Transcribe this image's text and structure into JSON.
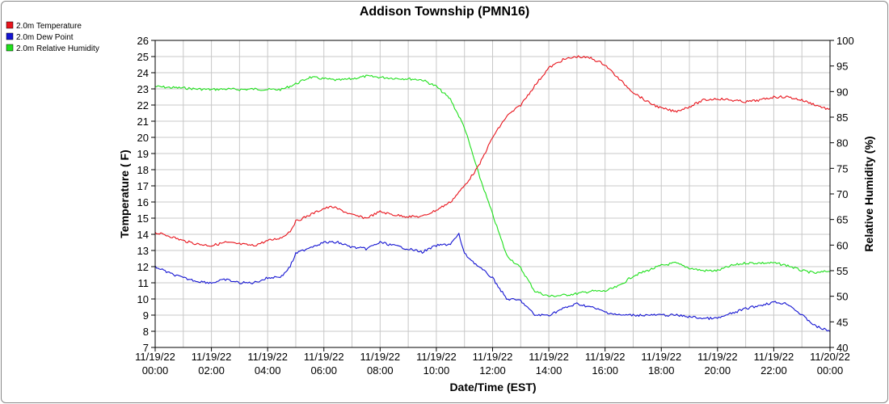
{
  "chart_data": {
    "type": "line",
    "title": "Addison Township (PMN16)",
    "xlabel": "Date/Time (EST)",
    "ylabel": "Temperature ( F)",
    "y2label": "Relative Humidity (%)",
    "xlim": [
      0,
      24
    ],
    "ylim": [
      7,
      26
    ],
    "y2lim": [
      40,
      100
    ],
    "grid": true,
    "legend_position": "top-left",
    "x_tick_labels": [
      [
        "11/19/22",
        "00:00"
      ],
      [
        "11/19/22",
        "02:00"
      ],
      [
        "11/19/22",
        "04:00"
      ],
      [
        "11/19/22",
        "06:00"
      ],
      [
        "11/19/22",
        "08:00"
      ],
      [
        "11/19/22",
        "10:00"
      ],
      [
        "11/19/22",
        "12:00"
      ],
      [
        "11/19/22",
        "14:00"
      ],
      [
        "11/19/22",
        "16:00"
      ],
      [
        "11/19/22",
        "18:00"
      ],
      [
        "11/19/22",
        "20:00"
      ],
      [
        "11/19/22",
        "22:00"
      ],
      [
        "11/20/22",
        "00:00"
      ]
    ],
    "y_ticks": [
      7,
      8,
      9,
      10,
      11,
      12,
      13,
      14,
      15,
      16,
      17,
      18,
      19,
      20,
      21,
      22,
      23,
      24,
      25,
      26
    ],
    "y2_ticks": [
      40,
      45,
      50,
      55,
      60,
      65,
      70,
      75,
      80,
      85,
      90,
      95,
      100
    ],
    "series": [
      {
        "name": "2.0m Temperature",
        "color": "#e8141c",
        "axis": "left",
        "points": [
          [
            0,
            14.1
          ],
          [
            0.5,
            13.9
          ],
          [
            1,
            13.6
          ],
          [
            1.5,
            13.4
          ],
          [
            2,
            13.3
          ],
          [
            2.5,
            13.5
          ],
          [
            3,
            13.4
          ],
          [
            3.5,
            13.3
          ],
          [
            4,
            13.6
          ],
          [
            4.5,
            13.8
          ],
          [
            4.8,
            14.2
          ],
          [
            5,
            14.8
          ],
          [
            5.5,
            15.2
          ],
          [
            6,
            15.6
          ],
          [
            6.3,
            15.7
          ],
          [
            6.6,
            15.5
          ],
          [
            7,
            15.2
          ],
          [
            7.5,
            15.0
          ],
          [
            8,
            15.4
          ],
          [
            8.5,
            15.2
          ],
          [
            9,
            15.1
          ],
          [
            9.5,
            15.1
          ],
          [
            10,
            15.5
          ],
          [
            10.5,
            16.0
          ],
          [
            11,
            17.0
          ],
          [
            11.5,
            18.2
          ],
          [
            12,
            20.0
          ],
          [
            12.5,
            21.3
          ],
          [
            13,
            22.0
          ],
          [
            13.5,
            23.2
          ],
          [
            14,
            24.3
          ],
          [
            14.5,
            24.8
          ],
          [
            15,
            25.0
          ],
          [
            15.5,
            24.9
          ],
          [
            16,
            24.5
          ],
          [
            16.5,
            23.6
          ],
          [
            17,
            22.8
          ],
          [
            17.5,
            22.2
          ],
          [
            18,
            21.8
          ],
          [
            18.5,
            21.6
          ],
          [
            19,
            21.9
          ],
          [
            19.5,
            22.3
          ],
          [
            20,
            22.4
          ],
          [
            20.5,
            22.3
          ],
          [
            21,
            22.2
          ],
          [
            21.5,
            22.3
          ],
          [
            22,
            22.5
          ],
          [
            22.5,
            22.5
          ],
          [
            23,
            22.3
          ],
          [
            23.5,
            22.0
          ],
          [
            24,
            21.7
          ]
        ]
      },
      {
        "name": "2.0m Dew Point",
        "color": "#1414d2",
        "axis": "left",
        "points": [
          [
            0,
            12.0
          ],
          [
            0.5,
            11.6
          ],
          [
            1,
            11.3
          ],
          [
            1.5,
            11.1
          ],
          [
            2,
            11.0
          ],
          [
            2.5,
            11.2
          ],
          [
            3,
            11.0
          ],
          [
            3.5,
            11.0
          ],
          [
            4,
            11.3
          ],
          [
            4.5,
            11.4
          ],
          [
            4.8,
            12.0
          ],
          [
            5,
            12.8
          ],
          [
            5.5,
            13.2
          ],
          [
            6,
            13.5
          ],
          [
            6.5,
            13.5
          ],
          [
            7,
            13.2
          ],
          [
            7.5,
            13.1
          ],
          [
            8,
            13.5
          ],
          [
            8.5,
            13.3
          ],
          [
            9,
            13.1
          ],
          [
            9.5,
            12.9
          ],
          [
            10,
            13.3
          ],
          [
            10.5,
            13.4
          ],
          [
            10.8,
            14.0
          ],
          [
            11,
            12.8
          ],
          [
            11.5,
            12.0
          ],
          [
            12,
            11.3
          ],
          [
            12.5,
            10.0
          ],
          [
            13,
            9.9
          ],
          [
            13.5,
            9.0
          ],
          [
            14,
            9.0
          ],
          [
            14.5,
            9.4
          ],
          [
            15,
            9.7
          ],
          [
            15.5,
            9.5
          ],
          [
            16,
            9.2
          ],
          [
            16.5,
            9.0
          ],
          [
            17,
            9.0
          ],
          [
            17.5,
            9.0
          ],
          [
            18,
            9.0
          ],
          [
            18.5,
            9.0
          ],
          [
            19,
            8.9
          ],
          [
            19.5,
            8.8
          ],
          [
            20,
            8.8
          ],
          [
            20.5,
            9.1
          ],
          [
            21,
            9.4
          ],
          [
            21.5,
            9.6
          ],
          [
            22,
            9.8
          ],
          [
            22.5,
            9.7
          ],
          [
            23,
            9.0
          ],
          [
            23.5,
            8.3
          ],
          [
            24,
            8.0
          ]
        ]
      },
      {
        "name": "2.0m Relative Humidity",
        "color": "#1fe01c",
        "axis": "right",
        "points": [
          [
            0,
            91
          ],
          [
            0.5,
            90.8
          ],
          [
            1,
            90.7
          ],
          [
            1.5,
            90.5
          ],
          [
            2,
            90.4
          ],
          [
            2.5,
            90.5
          ],
          [
            3,
            90.4
          ],
          [
            3.5,
            90.5
          ],
          [
            4,
            90.4
          ],
          [
            4.5,
            90.4
          ],
          [
            5,
            91.5
          ],
          [
            5.5,
            92.8
          ],
          [
            6,
            92.5
          ],
          [
            6.5,
            92.2
          ],
          [
            7,
            92.5
          ],
          [
            7.5,
            93.0
          ],
          [
            8,
            92.8
          ],
          [
            8.5,
            92.6
          ],
          [
            9,
            92.5
          ],
          [
            9.5,
            92.3
          ],
          [
            10,
            91.0
          ],
          [
            10.5,
            88.5
          ],
          [
            11,
            83.0
          ],
          [
            11.5,
            74.0
          ],
          [
            12,
            66.0
          ],
          [
            12.5,
            58.0
          ],
          [
            13,
            55.5
          ],
          [
            13.5,
            51.0
          ],
          [
            14,
            50.0
          ],
          [
            14.5,
            50.2
          ],
          [
            15,
            50.5
          ],
          [
            15.5,
            51.0
          ],
          [
            16,
            51.0
          ],
          [
            16.5,
            52.0
          ],
          [
            17,
            54.0
          ],
          [
            17.5,
            55.0
          ],
          [
            18,
            56.0
          ],
          [
            18.5,
            56.5
          ],
          [
            19,
            55.5
          ],
          [
            19.5,
            55.0
          ],
          [
            20,
            55.0
          ],
          [
            20.5,
            56.0
          ],
          [
            21,
            56.5
          ],
          [
            21.5,
            56.5
          ],
          [
            22,
            56.5
          ],
          [
            22.5,
            56.0
          ],
          [
            23,
            55.0
          ],
          [
            23.5,
            54.5
          ],
          [
            24,
            55.0
          ]
        ]
      }
    ]
  }
}
